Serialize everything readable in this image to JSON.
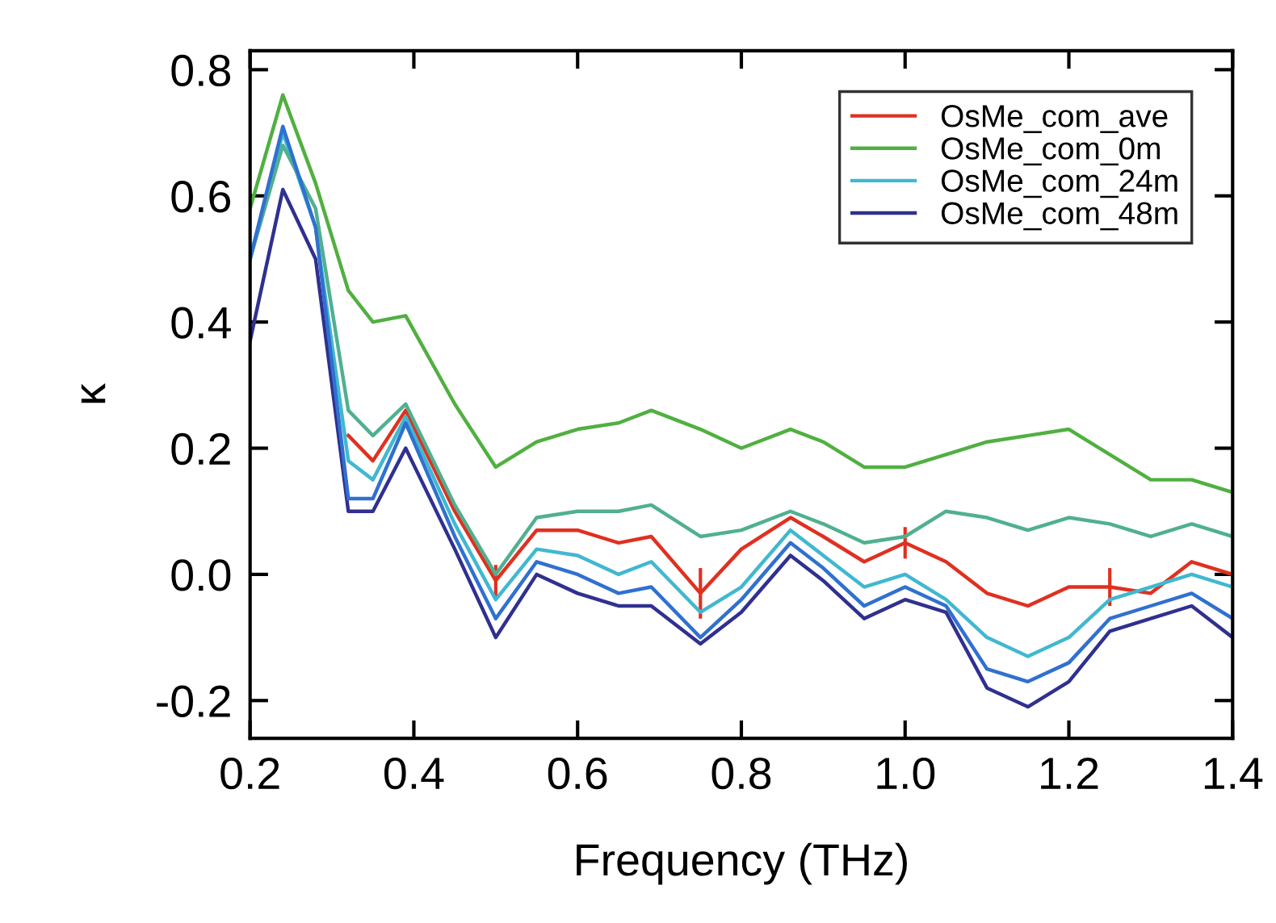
{
  "chart_data": {
    "type": "line",
    "xlabel": "Frequency (THz)",
    "ylabel": "κ",
    "x": [
      0.2,
      0.24,
      0.28,
      0.32,
      0.35,
      0.39,
      0.45,
      0.5,
      0.55,
      0.6,
      0.65,
      0.69,
      0.75,
      0.8,
      0.86,
      0.9,
      0.95,
      1.0,
      1.05,
      1.1,
      1.15,
      1.2,
      1.25,
      1.3,
      1.35,
      1.4
    ],
    "series": [
      {
        "name": "OsMe_com_ave",
        "color": "#e03020",
        "values": [
          null,
          null,
          null,
          0.22,
          0.18,
          0.26,
          0.1,
          -0.01,
          0.07,
          0.07,
          0.05,
          0.06,
          -0.03,
          0.04,
          0.09,
          0.06,
          0.02,
          0.05,
          0.02,
          -0.03,
          -0.05,
          -0.02,
          -0.02,
          -0.03,
          0.02,
          0.0
        ],
        "errors": [
          null,
          null,
          null,
          null,
          null,
          null,
          null,
          0.025,
          null,
          null,
          null,
          null,
          0.04,
          null,
          null,
          null,
          null,
          0.025,
          null,
          null,
          null,
          null,
          0.03,
          null,
          null,
          null
        ]
      },
      {
        "name": "OsMe_com_0m",
        "color": "#50b040",
        "values": [
          0.58,
          0.76,
          0.62,
          0.45,
          0.4,
          0.41,
          0.27,
          0.17,
          0.21,
          0.23,
          0.24,
          0.26,
          0.23,
          0.2,
          0.23,
          0.21,
          0.17,
          0.17,
          0.19,
          0.21,
          0.22,
          0.23,
          0.19,
          0.15,
          0.15,
          0.13
        ]
      },
      {
        "name": "OsMe_com_24m",
        "color": "#40b8d0",
        "values": [
          0.5,
          0.7,
          0.55,
          0.18,
          0.15,
          0.25,
          0.08,
          -0.04,
          0.04,
          0.03,
          0.0,
          0.02,
          -0.06,
          -0.02,
          0.07,
          0.03,
          -0.02,
          0.0,
          -0.04,
          -0.1,
          -0.13,
          -0.1,
          -0.04,
          -0.02,
          0.0,
          -0.02
        ]
      },
      {
        "name": "OsMe_com_48m",
        "color": "#303090",
        "values": [
          0.37,
          0.61,
          0.5,
          0.1,
          0.1,
          0.2,
          0.04,
          -0.1,
          0.0,
          -0.03,
          -0.05,
          -0.05,
          -0.11,
          -0.06,
          0.03,
          -0.01,
          -0.07,
          -0.04,
          -0.06,
          -0.18,
          -0.21,
          -0.17,
          -0.09,
          -0.07,
          -0.05,
          -0.1
        ]
      },
      {
        "color": "#50b090",
        "values": [
          0.5,
          0.68,
          0.58,
          0.26,
          0.22,
          0.27,
          0.11,
          0.0,
          0.09,
          0.1,
          0.1,
          0.11,
          0.06,
          0.07,
          0.1,
          0.08,
          0.05,
          0.06,
          0.1,
          0.09,
          0.07,
          0.09,
          0.08,
          0.06,
          0.08,
          0.06
        ]
      },
      {
        "color": "#3070d0",
        "values": [
          0.5,
          0.71,
          0.55,
          0.12,
          0.12,
          0.24,
          0.06,
          -0.07,
          0.02,
          0.0,
          -0.03,
          -0.02,
          -0.1,
          -0.04,
          0.05,
          0.01,
          -0.05,
          -0.02,
          -0.05,
          -0.15,
          -0.17,
          -0.14,
          -0.07,
          -0.05,
          -0.03,
          -0.07
        ]
      }
    ],
    "xlim": [
      0.2,
      1.4
    ],
    "ylim": [
      -0.26,
      0.83
    ],
    "xticks": [
      0.2,
      0.4,
      0.6,
      0.8,
      {
        "value": 1.0,
        "label": "1.0"
      },
      1.2,
      1.4
    ],
    "yticks": [
      {
        "value": -0.2,
        "label": "-0.2"
      },
      {
        "value": 0.0,
        "label": "0.0"
      },
      0.2,
      0.4,
      0.6,
      0.8
    ],
    "grid": false,
    "legend": "top right",
    "marker": "none",
    "line_style": "solid"
  }
}
